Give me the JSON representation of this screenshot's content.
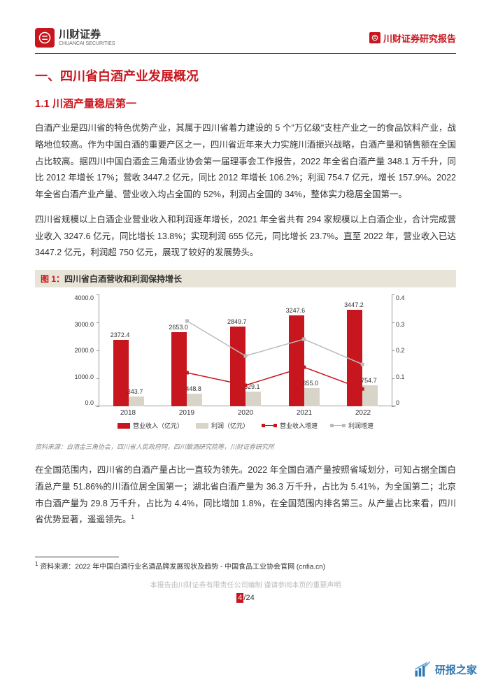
{
  "header": {
    "company_cn": "川财证券",
    "company_en": "CHUANCAI SECURITIES",
    "right_label": "川财证券研究报告"
  },
  "section1_title": "一、四川省白酒产业发展概况",
  "section1_1_title": "1.1 川酒产量稳居第一",
  "para1": "白酒产业是四川省的特色优势产业，其属于四川省着力建设的 5 个\"万亿级\"支柱产业之一的食品饮料产业，战略地位较高。作为中国白酒的重要产区之一，四川省近年来大力实施川酒振兴战略，白酒产量和销售额在全国占比较高。据四川中国白酒金三角酒业协会第一届理事会工作报告，2022 年全省白酒产量 348.1 万千升，同比 2012 年增长 17%；营收 3447.2 亿元，同比 2012 年增长 106.2%；利润 754.7 亿元，增长 157.9%。2022 年全省白酒产业产量、营业收入均占全国的 52%，利润占全国的 34%，整体实力稳居全国第一。",
  "para2": "四川省规模以上白酒企业营业收入和利润逐年增长，2021 年全省共有 294 家规模以上白酒企业，合计完成营业收入 3247.6 亿元，同比增长 13.8%；实现利润 655 亿元，同比增长 23.7%。直至 2022 年，营业收入已达 3447.2 亿元，利润超 750 亿元，展现了较好的发展势头。",
  "figure1": {
    "label": "图 1：",
    "title": "四川省白酒营收和利润保持增长",
    "chart": {
      "type": "bar+line",
      "categories": [
        "2018",
        "2019",
        "2020",
        "2021",
        "2022"
      ],
      "series": {
        "revenue": {
          "label": "营业收入（亿元）",
          "color": "#c8161e",
          "values": [
            2372.4,
            2653.0,
            2849.7,
            3247.6,
            3447.2
          ]
        },
        "profit": {
          "label": "利润（亿元）",
          "color": "#d8d4c8",
          "values": [
            343.7,
            448.8,
            529.1,
            655.0,
            754.7
          ]
        },
        "revenue_growth": {
          "label": "营业收入增速",
          "line_color": "#c8161e",
          "values_pct": [
            null,
            0.12,
            0.075,
            0.14,
            0.062
          ]
        },
        "profit_growth": {
          "label": "利润增速",
          "line_color": "#bbb",
          "values_pct": [
            null,
            0.305,
            0.18,
            0.24,
            0.15
          ]
        }
      },
      "bar_value_labels": [
        "2372.4",
        "2653.0",
        "2849.7",
        "3247.6",
        "3447.2"
      ],
      "profit_value_labels": [
        "343.7",
        "448.8",
        "529.1",
        "655.0",
        "754.7"
      ],
      "y_left": {
        "min": 0,
        "max": 4000,
        "ticks": [
          "4000.0",
          "3000.0",
          "2000.0",
          "1000.0",
          "0.0"
        ]
      },
      "y_right": {
        "min": 0,
        "max": 0.4,
        "ticks": [
          "0.4",
          "0.3",
          "0.2",
          "0.1",
          "0"
        ]
      },
      "background_color": "#ffffff"
    },
    "source": "资料来源：白酒金三角协会，四川省人民政府网，四川酿酒研究院等，川财证券研究所"
  },
  "para3": "在全国范围内，四川省的白酒产量占比一直较为领先。2022 年全国白酒产量按照省域划分，可知占据全国白酒总产量 51.86%的川酒位居全国第一；湖北省白酒产量为 36.3 万千升，占比为 5.41%，为全国第二；北京市白酒产量为 29.8 万千升，占比为 4.4%，同比增加 1.8%，在全国范围内排名第三。从产量占比来看，四川省优势显著，遥遥领先。",
  "footnote_marker": "1",
  "footnote1": "资料来源：2022 年中国白酒行业名酒品牌发展现状及趋势 - 中国食品工业协会官网 (cnfia.cn)",
  "footer": {
    "disclaimer": "本报告由川财证券有限责任公司编制 谨请参阅本页的重要声明",
    "page_current": "4",
    "page_total": "/24"
  },
  "watermark": "研报之家"
}
